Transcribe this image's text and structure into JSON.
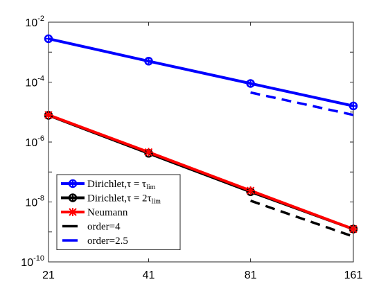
{
  "chart_data": {
    "type": "line",
    "x_scale": "log",
    "y_scale": "log",
    "x": [
      21,
      41,
      81,
      161
    ],
    "xlim": [
      21,
      161
    ],
    "ylim": [
      1e-10,
      0.01
    ],
    "x_tick_labels": [
      "21",
      "41",
      "81",
      "161"
    ],
    "y_ticks": [
      {
        "value": 0.01,
        "base": "10",
        "exp": "-2"
      },
      {
        "value": 0.0001,
        "base": "10",
        "exp": "-4"
      },
      {
        "value": 1e-06,
        "base": "10",
        "exp": "-6"
      },
      {
        "value": 1e-08,
        "base": "10",
        "exp": "-8"
      },
      {
        "value": 1e-10,
        "base": "10",
        "exp": "-10"
      }
    ],
    "grid": false,
    "legend_position": "bottom-left",
    "series": [
      {
        "name": "Dirichlet,τ = τlim",
        "legend": {
          "main": "Dirichlet,τ = τ",
          "sub": "lim"
        },
        "color": "#0000ff",
        "marker": "circle-plus",
        "line_style": "solid",
        "x": [
          21,
          41,
          81,
          161
        ],
        "values": [
          0.0028,
          0.0005,
          9e-05,
          1.6e-05
        ]
      },
      {
        "name": "Dirichlet,τ = 2τlim",
        "legend": {
          "main": "Dirichlet,τ = 2τ",
          "sub": "lim"
        },
        "color": "#000000",
        "marker": "circle-plus",
        "line_style": "solid",
        "x": [
          21,
          41,
          81,
          161
        ],
        "values": [
          7.8e-06,
          4.2e-07,
          2.2e-08,
          1.25e-09
        ]
      },
      {
        "name": "Neumann",
        "legend": {
          "main": "Neumann",
          "sub": ""
        },
        "color": "#ff0000",
        "marker": "star",
        "line_style": "solid",
        "x": [
          21,
          41,
          81,
          161
        ],
        "values": [
          8e-06,
          4.6e-07,
          2.4e-08,
          1.25e-09
        ]
      },
      {
        "name": "order=4",
        "legend": {
          "main": "order=4",
          "sub": ""
        },
        "color": "#000000",
        "marker": "none",
        "line_style": "dashed",
        "x": [
          81,
          161
        ],
        "values": [
          1.1e-08,
          7e-10
        ]
      },
      {
        "name": "order=2.5",
        "legend": {
          "main": "order=2.5",
          "sub": ""
        },
        "color": "#0000ff",
        "marker": "none",
        "line_style": "dashed",
        "x": [
          81,
          161
        ],
        "values": [
          4.5e-05,
          8e-06
        ]
      }
    ]
  }
}
